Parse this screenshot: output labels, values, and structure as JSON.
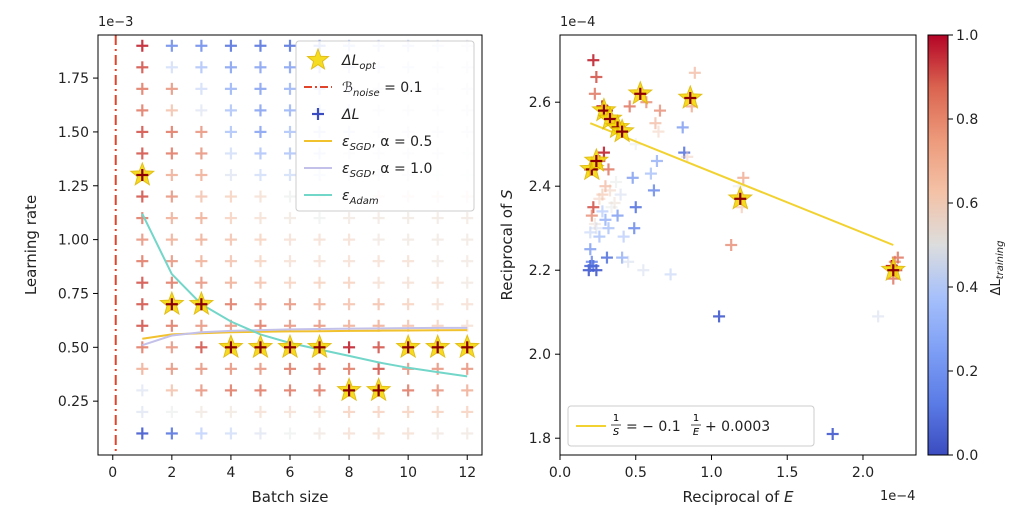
{
  "chart_data": [
    {
      "type": "scatter",
      "xlabel": "Batch size",
      "ylabel": "Learning rate",
      "y_offset_label": "1e−3",
      "xlim": [
        -0.5,
        12.5
      ],
      "ylim": [
        0.0,
        1.95
      ],
      "xticks": [
        0,
        2,
        4,
        6,
        8,
        10,
        12
      ],
      "xtick_labels": [
        "0",
        "2",
        "4",
        "6",
        "8",
        "10",
        "12"
      ],
      "yticks": [
        0.25,
        0.5,
        0.75,
        1.0,
        1.25,
        1.5,
        1.75
      ],
      "ytick_labels": [
        "0.25",
        "0.50",
        "0.75",
        "1.00",
        "1.25",
        "1.50",
        "1.75"
      ],
      "batch_sizes": [
        1,
        2,
        3,
        4,
        5,
        6,
        7,
        8,
        9,
        10,
        11,
        12
      ],
      "learning_rates": [
        1.9,
        1.8,
        1.7,
        1.6,
        1.5,
        1.4,
        1.3,
        1.2,
        1.1,
        1.0,
        0.9,
        0.8,
        0.7,
        0.6,
        0.5,
        0.4,
        0.3,
        0.2,
        0.1
      ],
      "delta_l_grid": [
        [
          0.95,
          0.15,
          0.15,
          0.1,
          0.1,
          0.1,
          0.15,
          0.3,
          0.35,
          0.35,
          0.4,
          0.45
        ],
        [
          0.9,
          0.4,
          0.3,
          0.2,
          0.2,
          0.2,
          0.25,
          0.35,
          0.4,
          0.4,
          0.45,
          0.45
        ],
        [
          0.85,
          0.8,
          0.4,
          0.25,
          0.2,
          0.25,
          0.3,
          0.4,
          0.45,
          0.45,
          0.45,
          0.45
        ],
        [
          0.85,
          0.7,
          0.45,
          0.3,
          0.2,
          0.25,
          0.3,
          0.4,
          0.45,
          0.45,
          0.45,
          0.45
        ],
        [
          0.9,
          0.85,
          0.8,
          0.3,
          0.2,
          0.3,
          0.35,
          0.4,
          0.45,
          0.45,
          0.45,
          0.45
        ],
        [
          0.9,
          0.85,
          0.8,
          0.4,
          0.3,
          0.3,
          0.35,
          0.45,
          0.45,
          0.45,
          0.45,
          0.5
        ],
        [
          1.0,
          0.75,
          0.75,
          0.45,
          0.4,
          0.4,
          0.4,
          0.45,
          0.45,
          0.45,
          0.5,
          0.5
        ],
        [
          0.9,
          0.8,
          0.7,
          0.65,
          0.6,
          0.5,
          0.55,
          0.55,
          0.6,
          0.6,
          0.6,
          0.6
        ],
        [
          0.85,
          0.75,
          0.75,
          0.65,
          0.6,
          0.55,
          0.5,
          0.55,
          0.55,
          0.55,
          0.55,
          0.55
        ],
        [
          0.8,
          0.75,
          0.75,
          0.7,
          0.65,
          0.6,
          0.6,
          0.6,
          0.55,
          0.55,
          0.55,
          0.55
        ],
        [
          0.85,
          0.8,
          0.75,
          0.7,
          0.65,
          0.6,
          0.6,
          0.6,
          0.6,
          0.6,
          0.55,
          0.55
        ],
        [
          0.9,
          0.85,
          0.8,
          0.75,
          0.7,
          0.65,
          0.65,
          0.65,
          0.6,
          0.6,
          0.6,
          0.55
        ],
        [
          0.9,
          1.0,
          1.0,
          0.85,
          0.8,
          0.8,
          0.75,
          0.7,
          0.7,
          0.65,
          0.6,
          0.6
        ],
        [
          0.9,
          0.85,
          0.8,
          0.8,
          0.85,
          0.8,
          0.8,
          0.75,
          0.75,
          0.7,
          0.65,
          0.6
        ],
        [
          0.85,
          0.8,
          0.9,
          1.0,
          1.0,
          1.0,
          1.0,
          0.95,
          0.9,
          1.0,
          1.0,
          1.0
        ],
        [
          0.75,
          0.8,
          0.8,
          0.8,
          0.8,
          0.85,
          0.85,
          0.85,
          0.9,
          0.8,
          0.8,
          0.8
        ],
        [
          0.45,
          0.7,
          0.8,
          0.85,
          0.85,
          0.85,
          0.85,
          1.0,
          1.0,
          0.85,
          0.8,
          0.75
        ],
        [
          0.45,
          0.5,
          0.55,
          0.55,
          0.6,
          0.6,
          0.6,
          0.65,
          0.65,
          0.65,
          0.65,
          0.65
        ],
        [
          0.05,
          0.1,
          0.35,
          0.4,
          0.45,
          0.5,
          0.55,
          0.6,
          0.6,
          0.6,
          0.55,
          0.55
        ]
      ],
      "opt_points": [
        {
          "x": 1,
          "y": 1.3
        },
        {
          "x": 2,
          "y": 0.7
        },
        {
          "x": 3,
          "y": 0.7
        },
        {
          "x": 4,
          "y": 0.5
        },
        {
          "x": 5,
          "y": 0.5
        },
        {
          "x": 6,
          "y": 0.5
        },
        {
          "x": 7,
          "y": 0.5
        },
        {
          "x": 10,
          "y": 0.5
        },
        {
          "x": 11,
          "y": 0.5
        },
        {
          "x": 12,
          "y": 0.5
        },
        {
          "x": 8,
          "y": 0.3
        },
        {
          "x": 9,
          "y": 0.3
        }
      ],
      "noise_line_x": 0.1,
      "series": [
        {
          "name": "ε_SGD, α = 0.5",
          "color": "#f2c12e",
          "x": [
            1,
            2,
            3,
            4,
            5,
            6,
            7,
            8,
            9,
            10,
            11,
            12
          ],
          "y": [
            0.54,
            0.56,
            0.565,
            0.57,
            0.572,
            0.574,
            0.575,
            0.576,
            0.577,
            0.578,
            0.579,
            0.58
          ]
        },
        {
          "name": "ε_SGD, α = 1.0",
          "color": "#c3c0ea",
          "x": [
            1,
            2,
            3,
            4,
            5,
            6,
            7,
            8,
            9,
            10,
            11,
            12
          ],
          "y": [
            0.51,
            0.555,
            0.57,
            0.576,
            0.58,
            0.583,
            0.585,
            0.587,
            0.588,
            0.589,
            0.59,
            0.59
          ]
        },
        {
          "name": "ε_Adam",
          "color": "#72d6c9",
          "x": [
            1,
            2,
            3,
            4,
            5,
            6,
            7,
            8,
            9,
            10,
            11,
            12
          ],
          "y": [
            1.12,
            0.84,
            0.7,
            0.62,
            0.56,
            0.52,
            0.49,
            0.46,
            0.43,
            0.405,
            0.385,
            0.365
          ]
        }
      ],
      "legend": {
        "placement": "top-right",
        "entries": [
          {
            "base": "ΔL",
            "sub": "opt",
            "rest": "",
            "marker": "star"
          },
          {
            "base": "ℬ",
            "sub": "noise",
            "rest": " = 0.1",
            "marker": "dashdot"
          },
          {
            "base": "ΔL",
            "sub": "",
            "rest": "",
            "marker": "plus"
          },
          {
            "base": "ε",
            "sub": "SGD",
            "rest": ", α = 0.5",
            "marker": "line-yellow"
          },
          {
            "base": "ε",
            "sub": "SGD",
            "rest": ", α = 1.0",
            "marker": "line-lavender"
          },
          {
            "base": "ε",
            "sub": "Adam",
            "rest": "",
            "marker": "line-teal"
          }
        ]
      }
    },
    {
      "type": "scatter",
      "xlabel": "Reciprocal of E",
      "ylabel": "Reciprocal of S",
      "x_offset_label": "1e−4",
      "y_offset_label": "1e−4",
      "xlim": [
        0.0,
        2.35
      ],
      "ylim": [
        1.76,
        2.76
      ],
      "xticks": [
        0.0,
        0.5,
        1.0,
        1.5,
        2.0
      ],
      "xtick_labels": [
        "0.0",
        "0.5",
        "1.0",
        "1.5",
        "2.0"
      ],
      "yticks": [
        1.8,
        2.0,
        2.2,
        2.4,
        2.6
      ],
      "ytick_labels": [
        "1.8",
        "2.0",
        "2.2",
        "2.4",
        "2.6"
      ],
      "points": [
        [
          0.22,
          2.7,
          0.95
        ],
        [
          0.24,
          2.66,
          0.9
        ],
        [
          0.23,
          2.62,
          0.85
        ],
        [
          0.28,
          2.59,
          1.0
        ],
        [
          0.31,
          2.58,
          0.95
        ],
        [
          0.34,
          2.56,
          0.9
        ],
        [
          0.36,
          2.55,
          0.95
        ],
        [
          0.41,
          2.53,
          1.0
        ],
        [
          0.46,
          2.59,
          0.85
        ],
        [
          0.53,
          2.62,
          1.0
        ],
        [
          0.57,
          2.6,
          0.8
        ],
        [
          0.5,
          2.5,
          0.5
        ],
        [
          0.63,
          2.55,
          0.7
        ],
        [
          0.66,
          2.58,
          0.8
        ],
        [
          0.65,
          2.53,
          0.6
        ],
        [
          0.64,
          2.46,
          0.25
        ],
        [
          0.6,
          2.43,
          0.3
        ],
        [
          0.62,
          2.39,
          0.15
        ],
        [
          0.81,
          2.54,
          0.2
        ],
        [
          0.86,
          2.61,
          1.0
        ],
        [
          0.89,
          2.67,
          0.7
        ],
        [
          0.87,
          2.59,
          0.75
        ],
        [
          0.82,
          2.48,
          0.1
        ],
        [
          0.84,
          2.47,
          0.6
        ],
        [
          0.2,
          2.44,
          1.0
        ],
        [
          0.24,
          2.45,
          0.95
        ],
        [
          0.26,
          2.46,
          0.9
        ],
        [
          0.29,
          2.48,
          0.95
        ],
        [
          0.32,
          2.44,
          0.85
        ],
        [
          0.3,
          2.4,
          0.7
        ],
        [
          0.28,
          2.38,
          0.65
        ],
        [
          0.26,
          2.37,
          0.6
        ],
        [
          0.22,
          2.35,
          0.9
        ],
        [
          0.21,
          2.33,
          0.8
        ],
        [
          0.23,
          2.31,
          0.55
        ],
        [
          0.2,
          2.29,
          0.4
        ],
        [
          0.24,
          2.3,
          0.45
        ],
        [
          0.26,
          2.28,
          0.3
        ],
        [
          0.28,
          2.34,
          0.35
        ],
        [
          0.3,
          2.32,
          0.25
        ],
        [
          0.32,
          2.3,
          0.3
        ],
        [
          0.34,
          2.35,
          0.5
        ],
        [
          0.36,
          2.36,
          0.55
        ],
        [
          0.38,
          2.33,
          0.2
        ],
        [
          0.4,
          2.38,
          0.45
        ],
        [
          0.37,
          2.41,
          0.5
        ],
        [
          0.33,
          2.39,
          0.6
        ],
        [
          0.42,
          2.28,
          0.35
        ],
        [
          0.48,
          2.42,
          0.2
        ],
        [
          0.5,
          2.35,
          0.1
        ],
        [
          0.49,
          2.3,
          0.15
        ],
        [
          0.41,
          2.23,
          0.25
        ],
        [
          0.45,
          2.22,
          0.45
        ],
        [
          0.55,
          2.2,
          0.45
        ],
        [
          0.31,
          2.23,
          0.1
        ],
        [
          0.2,
          2.25,
          0.2
        ],
        [
          0.21,
          2.22,
          0.15
        ],
        [
          0.19,
          2.2,
          0.05
        ],
        [
          0.22,
          2.21,
          0.1
        ],
        [
          0.24,
          2.2,
          0.05
        ],
        [
          0.2,
          2.21,
          0.08
        ],
        [
          0.73,
          2.19,
          0.4
        ],
        [
          1.05,
          2.09,
          0.05
        ],
        [
          1.13,
          2.26,
          0.8
        ],
        [
          1.19,
          2.37,
          0.9
        ],
        [
          1.21,
          2.42,
          0.75
        ],
        [
          1.2,
          2.35,
          0.65
        ],
        [
          1.18,
          2.4,
          0.5
        ],
        [
          1.8,
          1.81,
          0.05
        ],
        [
          2.1,
          2.09,
          0.45
        ],
        [
          2.2,
          2.18,
          0.85
        ],
        [
          2.22,
          2.2,
          0.9
        ],
        [
          2.21,
          2.22,
          0.8
        ],
        [
          2.23,
          2.23,
          0.85
        ],
        [
          2.19,
          2.21,
          1.0
        ]
      ],
      "opt_points": [
        {
          "x": 0.29,
          "y": 2.58
        },
        {
          "x": 0.33,
          "y": 2.56
        },
        {
          "x": 0.38,
          "y": 2.54
        },
        {
          "x": 0.41,
          "y": 2.53
        },
        {
          "x": 0.53,
          "y": 2.62
        },
        {
          "x": 0.86,
          "y": 2.61
        },
        {
          "x": 0.21,
          "y": 2.44
        },
        {
          "x": 0.24,
          "y": 2.46
        },
        {
          "x": 1.19,
          "y": 2.37
        },
        {
          "x": 2.2,
          "y": 2.2
        }
      ],
      "fit_line": {
        "x": [
          0.2,
          2.2
        ],
        "y": [
          2.55,
          2.26
        ],
        "color": "#f2d230"
      },
      "legend": {
        "placement": "lower-left",
        "entries": [
          {
            "text": "1/S = −0.1 1/E + 0.0003",
            "lhs_num": "1",
            "lhs_den": "S",
            "eq": "= − 0.1",
            "rhs_num": "1",
            "rhs_den": "E",
            "tail": "+ 0.0003"
          }
        ]
      },
      "colorbar": {
        "label_base": "ΔL",
        "label_sub": "training",
        "range": [
          0.0,
          1.0
        ],
        "ticks": [
          0.0,
          0.2,
          0.4,
          0.6,
          0.8,
          1.0
        ],
        "tick_labels": [
          "0.0",
          "0.2",
          "0.4",
          "0.6",
          "0.8",
          "1.0"
        ]
      }
    }
  ]
}
